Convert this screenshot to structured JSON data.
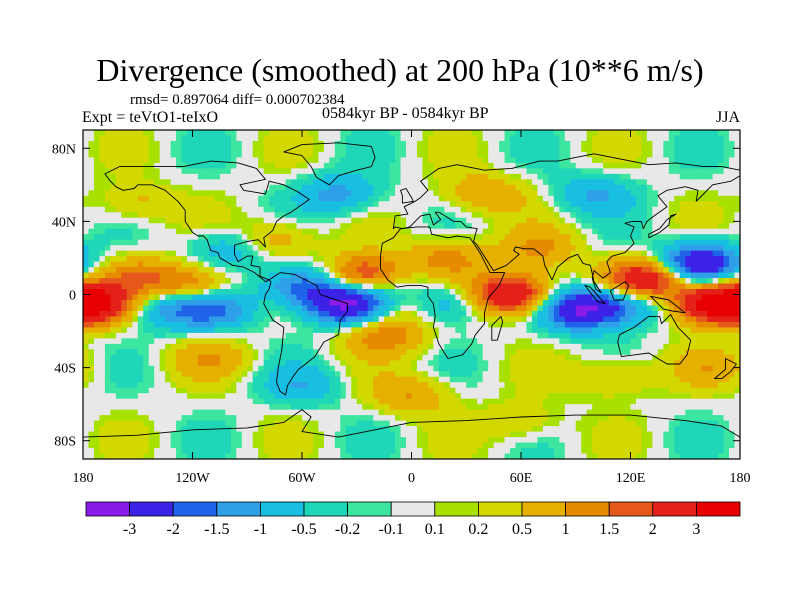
{
  "figure": {
    "title": "Divergence (smoothed) at 200 hPa (10**6 m/s)",
    "stats": "rmsd= 0.897064 diff= 0.000702384",
    "experiment": "Expt = teVtO1-teIxO",
    "period": "0584kyr BP - 0584kyr BP",
    "season": "JJA"
  },
  "chart_data": {
    "type": "heatmap",
    "title": "Divergence (smoothed) at 200 hPa (10**6 m/s)",
    "xlabel": "",
    "ylabel": "",
    "xlim": [
      -180,
      180
    ],
    "ylim": [
      -90,
      90
    ],
    "x_ticks": [
      -180,
      -120,
      -60,
      0,
      60,
      120,
      180
    ],
    "x_tick_labels": [
      "180",
      "120W",
      "60W",
      "0",
      "60E",
      "120E",
      "180"
    ],
    "y_ticks": [
      80,
      40,
      0,
      -40,
      -80
    ],
    "y_tick_labels": [
      "80N",
      "40N",
      "0",
      "40S",
      "80S"
    ],
    "colorbar": {
      "levels": [
        "-3",
        "-2",
        "-1.5",
        "-1",
        "-0.5",
        "-0.2",
        "-0.1",
        "0.1",
        "0.2",
        "0.5",
        "1",
        "1.5",
        "2",
        "3"
      ],
      "colors": [
        "#8a1be8",
        "#3b22e6",
        "#1f63e8",
        "#2f9fe8",
        "#18bfe0",
        "#20d6b8",
        "#3ce5a0",
        "#e8e8e8",
        "#a8e000",
        "#d2d800",
        "#e6b000",
        "#e68a00",
        "#e6581a",
        "#e32118",
        "#e80000"
      ]
    },
    "field_features": [
      {
        "lon": -35,
        "lat": -5,
        "value": -3.2
      },
      {
        "lon": -8,
        "lat": -2,
        "value": 1.8
      },
      {
        "lon": -10,
        "lat": 2,
        "value": -1.8
      },
      {
        "lon": -25,
        "lat": 10,
        "value": 2.6
      },
      {
        "lon": -15,
        "lat": -22,
        "value": 1.4
      },
      {
        "lon": 20,
        "lat": 20,
        "value": 1.2
      },
      {
        "lon": 20,
        "lat": -5,
        "value": -1.2
      },
      {
        "lon": 55,
        "lat": 0,
        "value": 3.3
      },
      {
        "lon": 70,
        "lat": 25,
        "value": 1.0
      },
      {
        "lon": 92,
        "lat": -8,
        "value": -3.0
      },
      {
        "lon": 128,
        "lat": 8,
        "value": 3.0
      },
      {
        "lon": 118,
        "lat": -5,
        "value": -1.5
      },
      {
        "lon": 158,
        "lat": 17,
        "value": -3.0
      },
      {
        "lon": 165,
        "lat": -5,
        "value": 3.2
      },
      {
        "lon": -175,
        "lat": -5,
        "value": 3.0
      },
      {
        "lon": -150,
        "lat": 10,
        "value": 1.2
      },
      {
        "lon": -135,
        "lat": -8,
        "value": -1.2
      },
      {
        "lon": -120,
        "lat": 5,
        "value": 1.5
      },
      {
        "lon": -108,
        "lat": -8,
        "value": -1.5
      },
      {
        "lon": -60,
        "lat": 5,
        "value": -1.8
      },
      {
        "lon": -100,
        "lat": 25,
        "value": -1.0
      },
      {
        "lon": -75,
        "lat": 30,
        "value": 1.0
      },
      {
        "lon": -40,
        "lat": 55,
        "value": -1.2
      },
      {
        "lon": 40,
        "lat": 55,
        "value": 1.0
      },
      {
        "lon": 100,
        "lat": 55,
        "value": -1.0
      },
      {
        "lon": -150,
        "lat": 50,
        "value": 0.7
      },
      {
        "lon": -110,
        "lat": -35,
        "value": 0.8
      },
      {
        "lon": 0,
        "lat": -55,
        "value": 1.0
      },
      {
        "lon": 110,
        "lat": -45,
        "value": 0.8
      },
      {
        "lon": -60,
        "lat": -50,
        "value": -0.8
      },
      {
        "lon": 60,
        "lat": -70,
        "value": 0.6
      },
      {
        "lon": 165,
        "lat": -40,
        "value": 0.7
      }
    ]
  }
}
